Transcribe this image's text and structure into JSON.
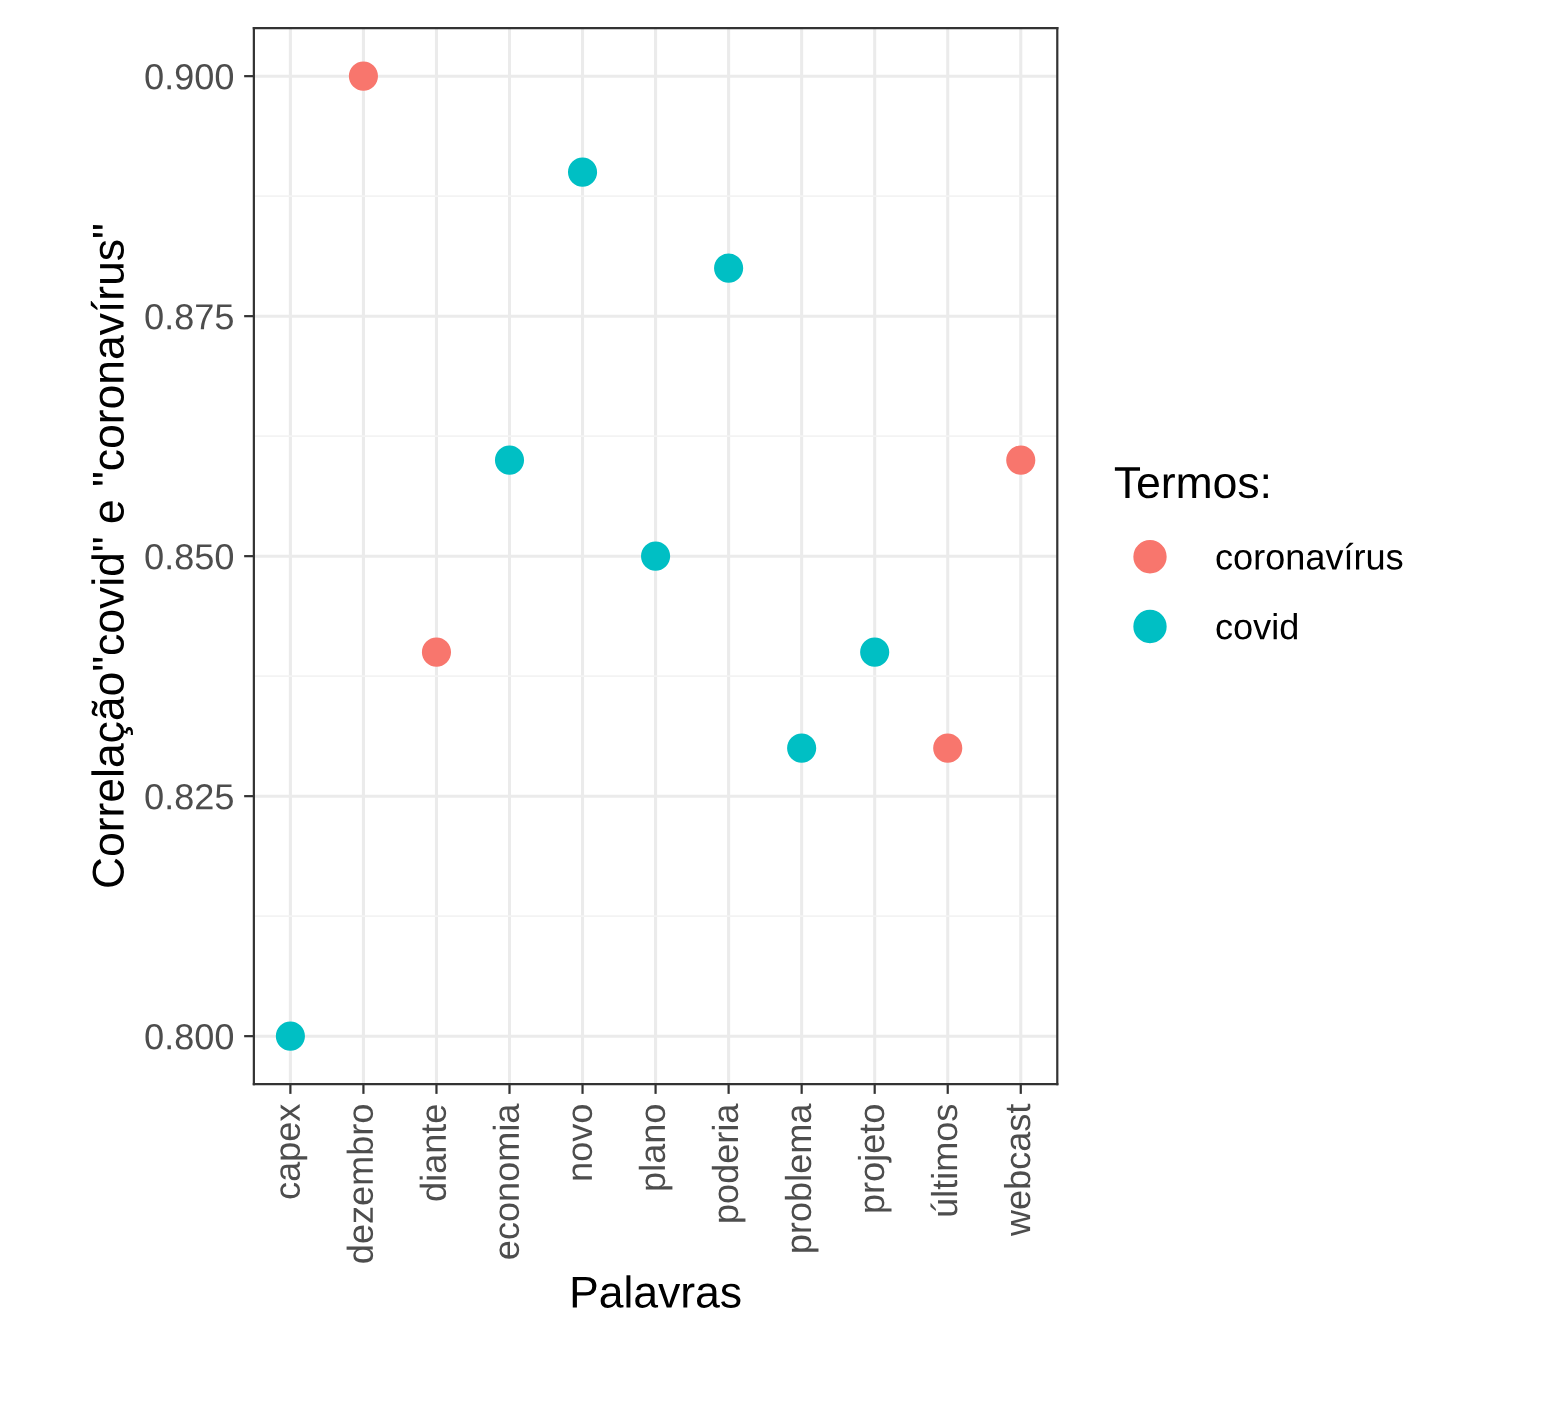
{
  "chart_data": {
    "type": "scatter",
    "xlabel": "Palavras",
    "ylabel": "Correlação\"covid\" e \"coronavírus\"",
    "legend_title": "Termos:",
    "categories": [
      "capex",
      "dezembro",
      "diante",
      "economia",
      "novo",
      "plano",
      "poderia",
      "problema",
      "projeto",
      "últimos",
      "webcast"
    ],
    "series": [
      {
        "name": "coronavírus",
        "color": "#f8766d",
        "values": [
          null,
          0.9,
          0.84,
          null,
          null,
          null,
          null,
          null,
          null,
          0.83,
          0.86
        ]
      },
      {
        "name": "covid",
        "color": "#00bfc4",
        "values": [
          0.8,
          null,
          null,
          0.86,
          0.89,
          0.85,
          0.88,
          0.83,
          0.84,
          null,
          null
        ]
      }
    ],
    "ylim": [
      0.795,
      0.905
    ],
    "yticks": [
      {
        "value": 0.8,
        "label": "0.800"
      },
      {
        "value": 0.825,
        "label": "0.825"
      },
      {
        "value": 0.85,
        "label": "0.850"
      },
      {
        "value": 0.875,
        "label": "0.875"
      },
      {
        "value": 0.9,
        "label": "0.900"
      }
    ],
    "grid": true,
    "legend": "right",
    "marker": "circle"
  }
}
